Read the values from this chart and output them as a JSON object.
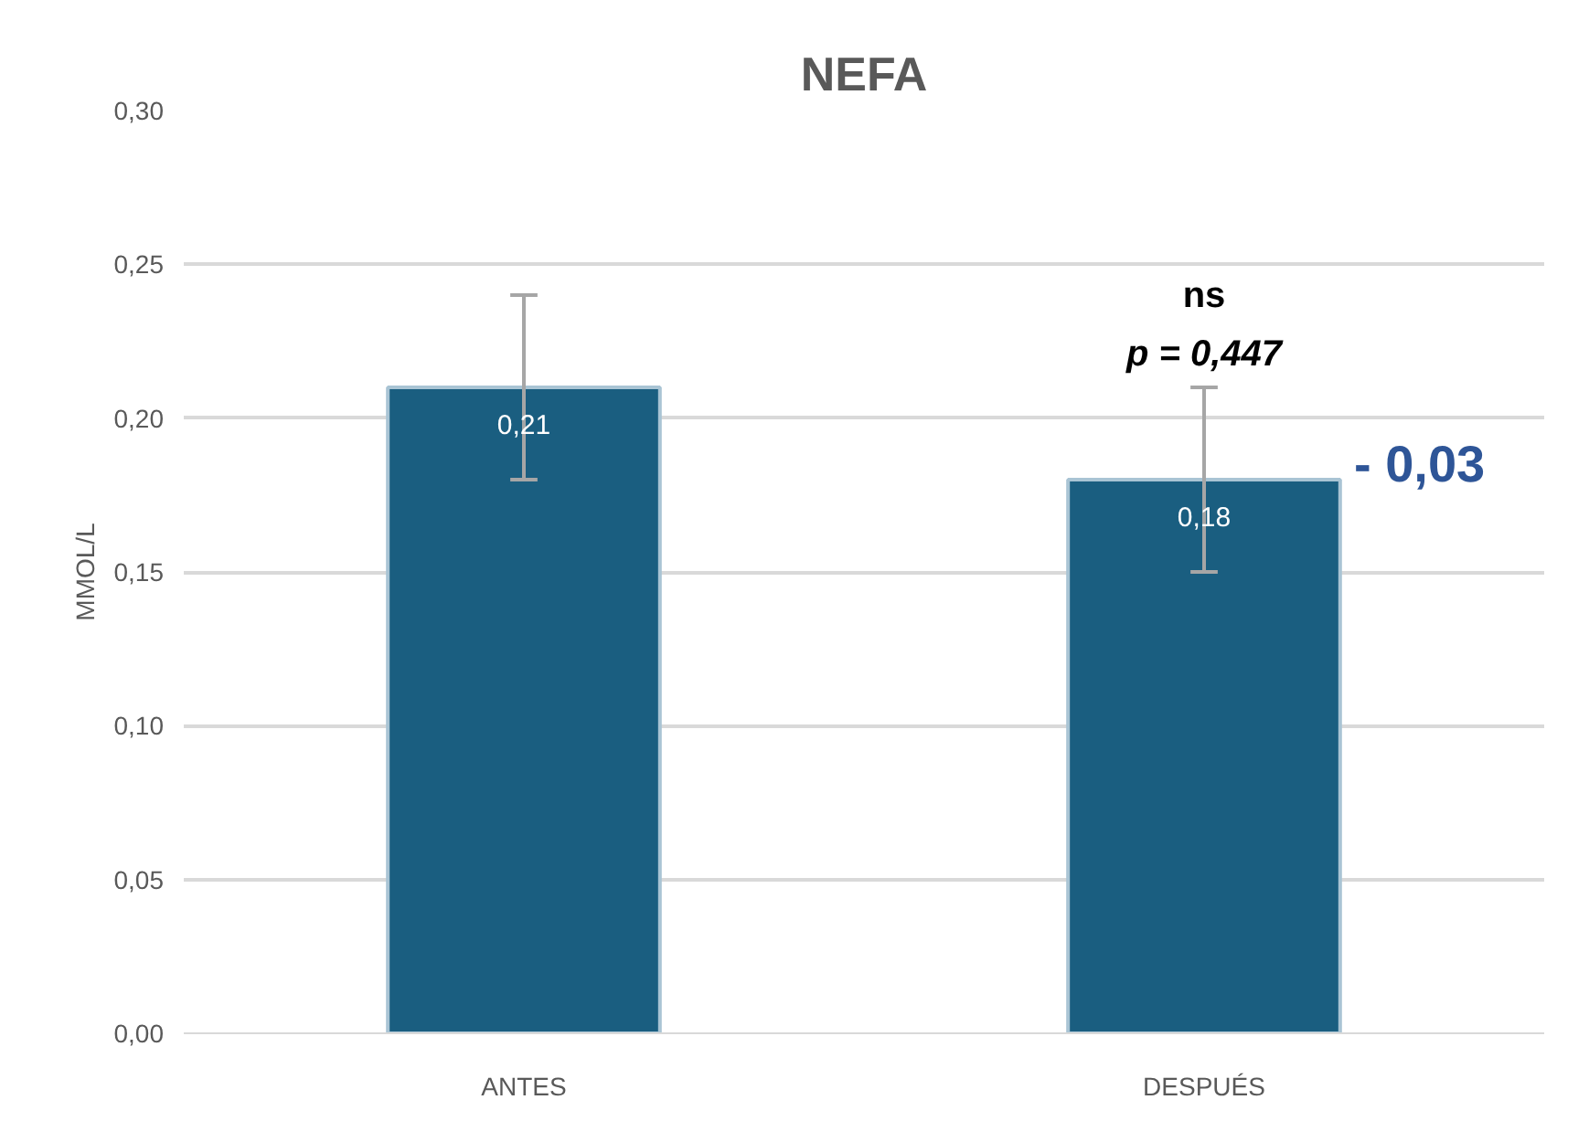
{
  "chart_data": {
    "type": "bar",
    "title": "NEFA",
    "ylabel": "MMOL/L",
    "categories": [
      "ANTES",
      "DESPUÉS"
    ],
    "values": [
      0.21,
      0.18
    ],
    "color": "#1a5e80",
    "errors": [
      0.03,
      0.03
    ],
    "value_labels": [
      "0,21",
      "0,18"
    ],
    "ylim": [
      0,
      0.3
    ],
    "yticks": [
      {
        "value": 0,
        "label": "0,00"
      },
      {
        "value": 0.05,
        "label": "0,05"
      },
      {
        "value": 0.1,
        "label": "0,10"
      },
      {
        "value": 0.15,
        "label": "0,15"
      },
      {
        "value": 0.2,
        "label": "0,20"
      },
      {
        "value": 0.25,
        "label": "0,25"
      },
      {
        "value": 0.3,
        "label": "0,30"
      }
    ],
    "grid": "y",
    "annotations": [
      "ns",
      "p = 0,447",
      {
        "text": "- 0,03",
        "x": "DESPUÉS",
        "y": 0.185
      }
    ]
  }
}
